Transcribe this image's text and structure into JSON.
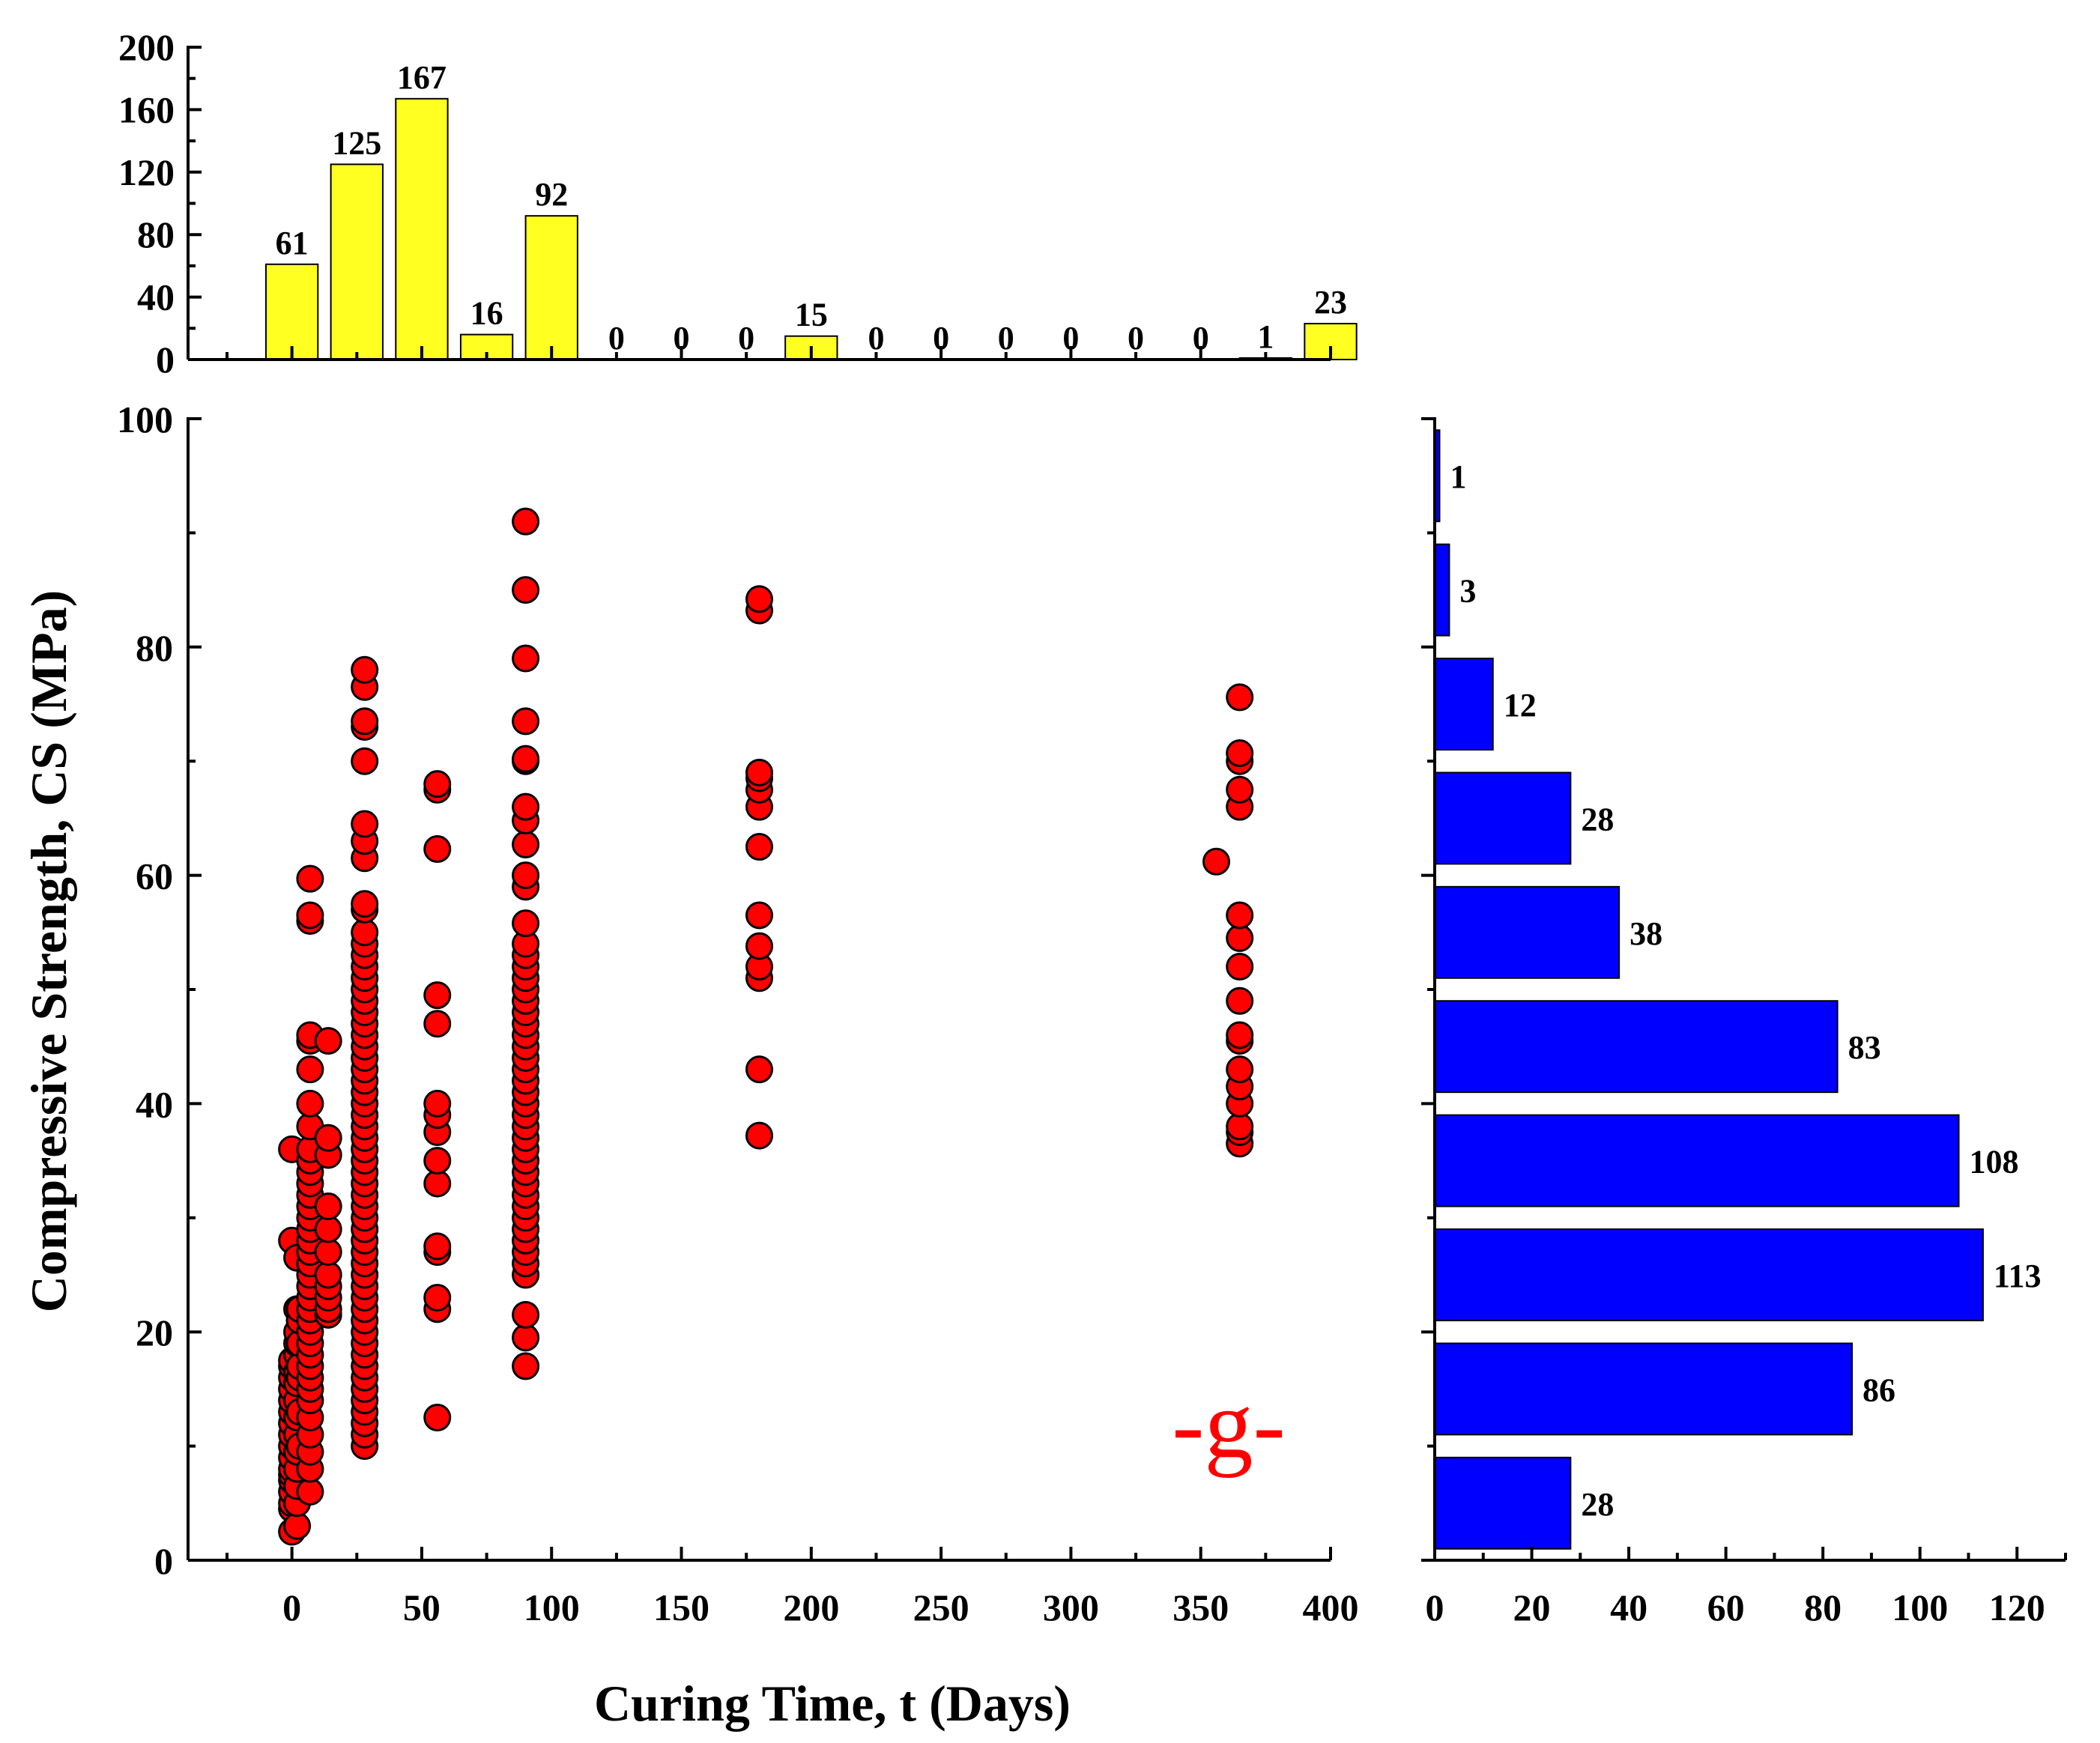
{
  "chart_data": [
    {
      "id": "top-histogram",
      "type": "bar",
      "description": "Count of samples per curing-time bin",
      "bins_x": [
        0,
        25,
        50,
        75,
        100,
        125,
        150,
        175,
        200,
        225,
        250,
        275,
        300,
        325,
        350,
        375,
        400
      ],
      "values": [
        61,
        125,
        167,
        16,
        92,
        0,
        0,
        0,
        15,
        0,
        0,
        0,
        0,
        0,
        0,
        1,
        23
      ],
      "labels": [
        "61",
        "125",
        "167",
        "16",
        "92",
        "0",
        "0",
        "0",
        "15",
        "0",
        "0",
        "0",
        "0",
        "0",
        "0",
        "1",
        "23"
      ],
      "bin_width": 20,
      "bar_color": "#ffff22",
      "xlim": [
        -40,
        400
      ],
      "ylim": [
        0,
        200
      ],
      "yticks": [
        0,
        40,
        80,
        120,
        160,
        200
      ],
      "ytick_labels": [
        "0",
        "40",
        "80",
        "120",
        "160",
        "200"
      ]
    },
    {
      "id": "main-scatter",
      "type": "scatter",
      "xlabel": "Curing Time, t (Days)",
      "ylabel": "Compressive Strength, CS (MPa)",
      "xlim": [
        -40,
        400
      ],
      "ylim": [
        0,
        100
      ],
      "xticks": [
        0,
        50,
        100,
        150,
        200,
        250,
        300,
        350,
        400
      ],
      "xtick_labels": [
        "0",
        "50",
        "100",
        "150",
        "200",
        "250",
        "300",
        "350",
        "400"
      ],
      "yticks": [
        0,
        20,
        40,
        60,
        80,
        100
      ],
      "ytick_labels": [
        "0",
        "20",
        "40",
        "60",
        "80",
        "100"
      ],
      "marker_color": "#ff0000",
      "marker_edge": "#000000",
      "annotation": "-g-",
      "annotation_color": "#ff0000",
      "groups": [
        {
          "x": 0,
          "y": [
            2.5,
            4.5,
            5,
            6,
            7,
            7.5,
            8,
            9,
            10,
            11,
            12,
            13,
            14,
            15,
            16,
            17,
            17.5,
            28,
            36
          ]
        },
        {
          "x": 2,
          "y": [
            3,
            5,
            6.5,
            8,
            9.5,
            11,
            12.5,
            14,
            15.5,
            16.5,
            18,
            19,
            20,
            22,
            26.5
          ]
        },
        {
          "x": 3,
          "y": [
            10,
            13,
            16,
            17,
            19,
            21,
            22
          ]
        },
        {
          "x": 7,
          "y": [
            6,
            8,
            9.5,
            11,
            12.5,
            14,
            15,
            16,
            17,
            18,
            19,
            20,
            21,
            22,
            23,
            24,
            25,
            26,
            27,
            28,
            29,
            30,
            31,
            32,
            33,
            34,
            35,
            36,
            38,
            40,
            43,
            45.5,
            46,
            56,
            56.5,
            59.7
          ]
        },
        {
          "x": 14,
          "y": [
            21.5,
            22,
            23,
            24,
            25,
            27,
            29,
            31,
            35.5,
            37,
            45.5
          ]
        },
        {
          "x": 28,
          "y": [
            10,
            11,
            12,
            13,
            14,
            15,
            16,
            17,
            18,
            19,
            20,
            21,
            22,
            23,
            24,
            25,
            26,
            27,
            28,
            29,
            30,
            31,
            32,
            33,
            34,
            35,
            36,
            37,
            38,
            39,
            40,
            41,
            42,
            43,
            44,
            45,
            46,
            47,
            48,
            49,
            50,
            51,
            52,
            53,
            54,
            55,
            57,
            57.5,
            61.5,
            63,
            64.5,
            70,
            73,
            73.5,
            76.5,
            78
          ]
        },
        {
          "x": 56,
          "y": [
            12.5,
            22,
            23,
            27,
            27.5,
            33,
            35,
            37.5,
            39,
            40,
            47,
            49.5,
            62.3,
            67.5,
            68
          ]
        },
        {
          "x": 90,
          "y": [
            17,
            19.5,
            21.5,
            25,
            26,
            27,
            28,
            29,
            30,
            31,
            32,
            33,
            34,
            35,
            36,
            37,
            38,
            39,
            40,
            41,
            42,
            43,
            44,
            45,
            46,
            47,
            48,
            49,
            50,
            51,
            52,
            53,
            54,
            55.8,
            59,
            60,
            62.7,
            64.8,
            66,
            70,
            70.2,
            73.5,
            79,
            85,
            91
          ]
        },
        {
          "x": 180,
          "y": [
            37.2,
            43,
            51,
            52,
            53.8,
            56.5,
            62.5,
            66,
            67.5,
            68.5,
            69,
            83.2,
            84.2
          ]
        },
        {
          "x": 356,
          "y": [
            61.2
          ]
        },
        {
          "x": 365,
          "y": [
            36.5,
            37.5,
            38,
            40,
            41.5,
            43,
            45.5,
            46,
            49,
            52,
            54.5,
            56.5,
            66,
            67.5,
            70,
            70.7,
            75.6
          ]
        }
      ]
    },
    {
      "id": "right-histogram",
      "type": "bar",
      "orientation": "horizontal",
      "description": "Count of samples per compressive-strength bin",
      "bins_y": [
        5,
        15,
        25,
        35,
        45,
        55,
        65,
        75,
        85,
        95
      ],
      "values": [
        28,
        86,
        113,
        108,
        83,
        38,
        28,
        12,
        3,
        1
      ],
      "labels": [
        "28",
        "86",
        "113",
        "108",
        "83",
        "38",
        "28",
        "12",
        "3",
        "1"
      ],
      "bin_height": 8,
      "bar_color": "#0000ff",
      "xlim": [
        0,
        130
      ],
      "ylim": [
        0,
        100
      ],
      "xticks": [
        0,
        20,
        40,
        60,
        80,
        100,
        120
      ],
      "xtick_labels": [
        "0",
        "20",
        "40",
        "60",
        "80",
        "100",
        "120"
      ]
    }
  ]
}
